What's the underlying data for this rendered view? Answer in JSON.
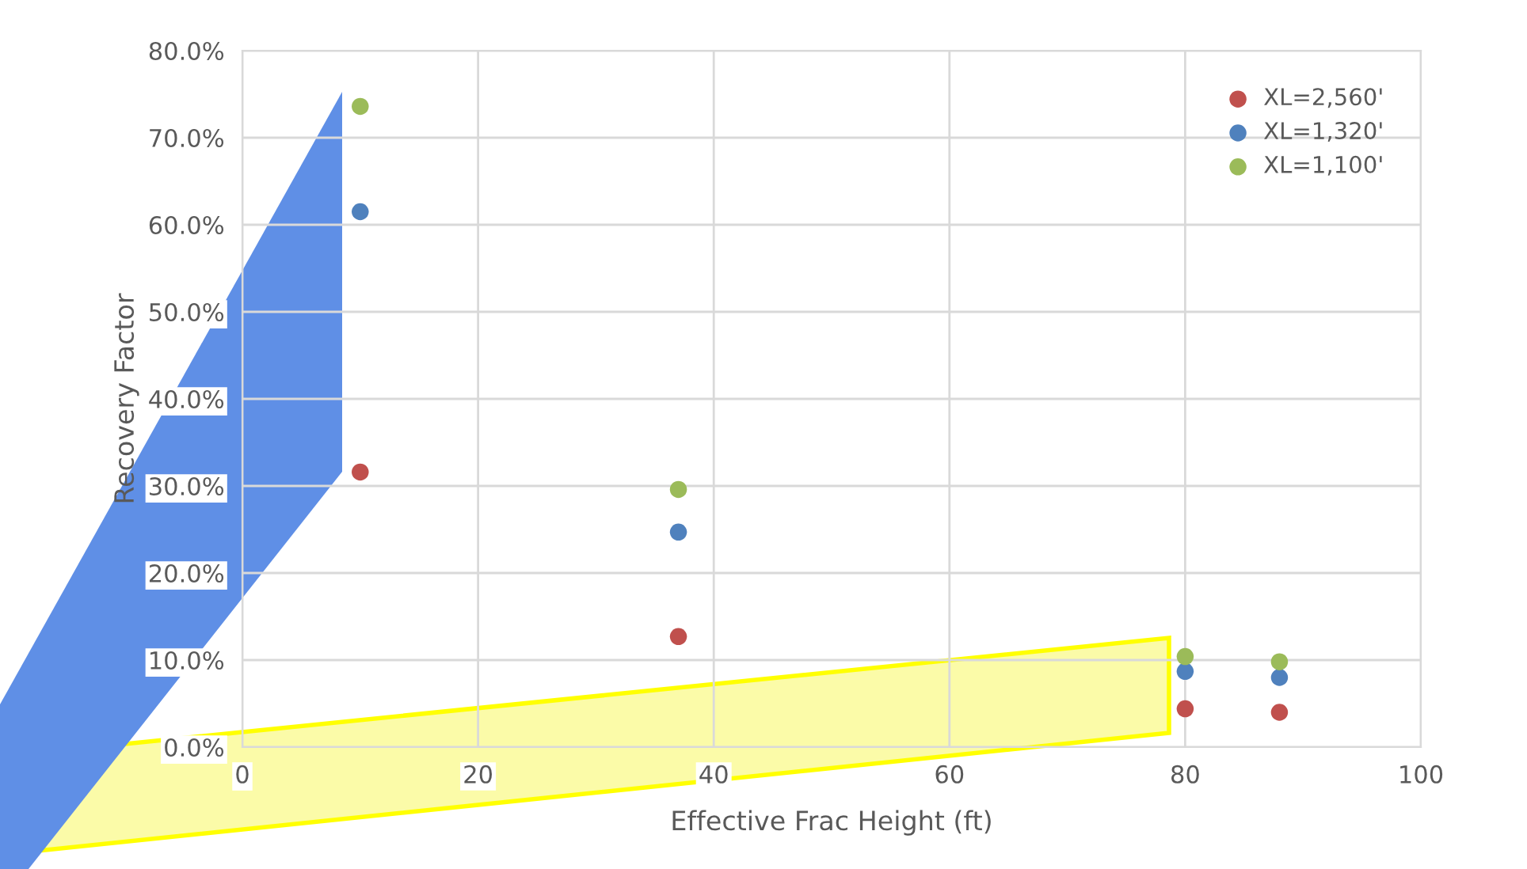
{
  "chart_data": {
    "type": "scatter",
    "xlabel": "Effective Frac Height (ft)",
    "ylabel": "Recovery Factor",
    "x": [
      10,
      37,
      80,
      88
    ],
    "series": [
      {
        "name": "XL=2,560'",
        "color": "#c0504d",
        "values": [
          31.6,
          12.7,
          4.4,
          4.0
        ]
      },
      {
        "name": "XL=1,320'",
        "color": "#4f81bd",
        "values": [
          61.5,
          24.7,
          8.7,
          8.0
        ]
      },
      {
        "name": "XL=1,100'",
        "color": "#9bbb59",
        "values": [
          73.6,
          29.6,
          10.4,
          9.8
        ]
      }
    ],
    "xlim": [
      0,
      100
    ],
    "xticks": [
      0,
      20,
      40,
      60,
      80,
      100
    ],
    "ylim": [
      0,
      80
    ],
    "yticks": [
      {
        "value": 0,
        "label": "0.0%"
      },
      {
        "value": 10,
        "label": "10.0%"
      },
      {
        "value": 20,
        "label": "20.0%"
      },
      {
        "value": 30,
        "label": "30.0%"
      },
      {
        "value": 40,
        "label": "40.0%"
      },
      {
        "value": 50,
        "label": "50.0%"
      },
      {
        "value": 60,
        "label": "60.0%"
      },
      {
        "value": 70,
        "label": "70.0%"
      },
      {
        "value": 80,
        "label": "80.0%"
      }
    ],
    "grid": true,
    "legend": "top right",
    "marker": "circle"
  }
}
